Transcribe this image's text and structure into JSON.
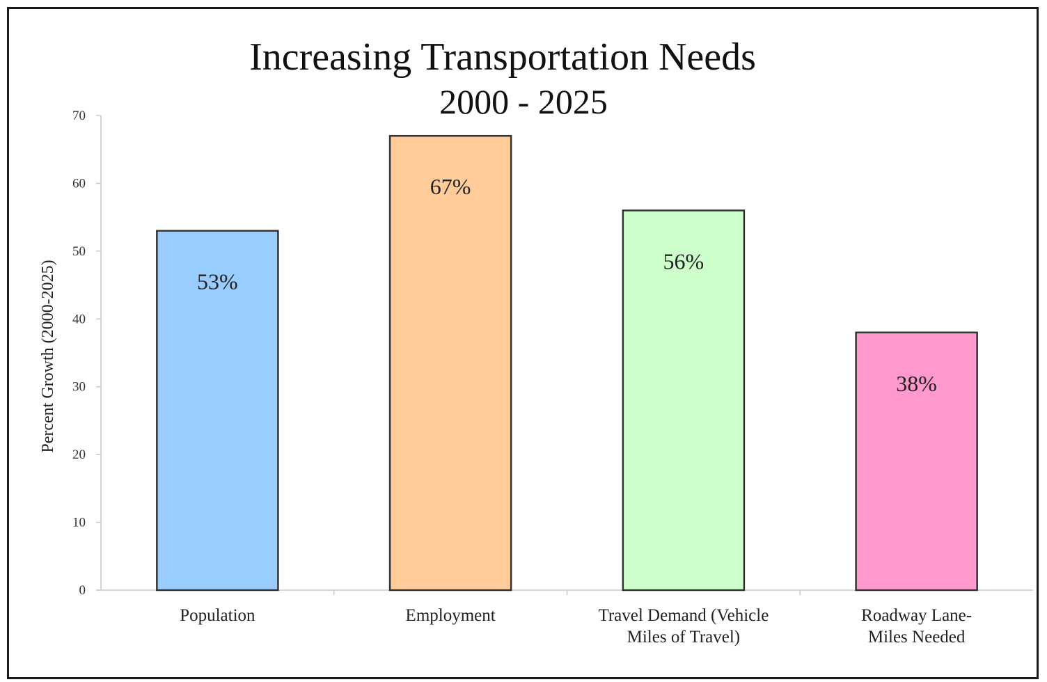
{
  "chart_data": {
    "type": "bar",
    "title": "Increasing Transportation Needs",
    "subtitle": "2000 - 2025",
    "ylabel": "Percent Growth (2000-2025)",
    "xlabel": "",
    "ylim": [
      0,
      70
    ],
    "yticks": [
      "0",
      "10",
      "20",
      "30",
      "40",
      "50",
      "60",
      "70"
    ],
    "categories": [
      [
        "Population"
      ],
      [
        "Employment"
      ],
      [
        "Travel Demand (Vehicle",
        "Miles of Travel)"
      ],
      [
        "Roadway Lane-",
        "Miles Needed"
      ]
    ],
    "values": [
      53,
      67,
      56,
      38
    ],
    "data_labels": [
      "53%",
      "67%",
      "56%",
      "38%"
    ],
    "colors": [
      "#99ccff",
      "#ffcc99",
      "#ccffcc",
      "#ff99cc"
    ],
    "grid": false,
    "legend": "none"
  }
}
